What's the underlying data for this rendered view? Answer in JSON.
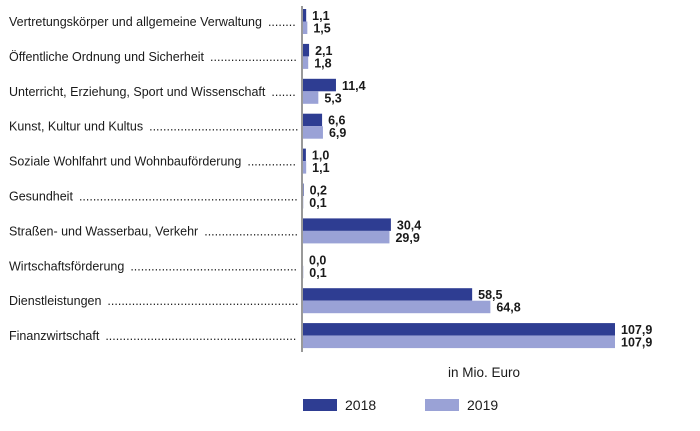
{
  "chart_data": {
    "type": "bar",
    "orientation": "horizontal",
    "categories": [
      "Vertretungskörper und allgemeine Verwaltung",
      "Öffentliche Ordnung und Sicherheit",
      "Unterricht, Erziehung, Sport und Wissenschaft",
      "Kunst, Kultur und Kultus",
      "Soziale Wohlfahrt und Wohnbauförderung",
      "Gesundheit",
      "Straßen- und Wasserbau, Verkehr",
      "Wirtschaftsförderung",
      "Dienstleistungen",
      "Finanzwirtschaft"
    ],
    "series": [
      {
        "name": "2018",
        "color": "#2e3d92",
        "values": [
          1.1,
          2.1,
          11.4,
          6.6,
          1.0,
          0.2,
          30.4,
          0.0,
          58.5,
          107.9
        ],
        "labels": [
          "1,1",
          "2,1",
          "11,4",
          "6,6",
          "1,0",
          "0,2",
          "30,4",
          "0,0",
          "58,5",
          "107,9"
        ]
      },
      {
        "name": "2019",
        "color": "#9aa2d6",
        "values": [
          1.5,
          1.8,
          5.3,
          6.9,
          1.1,
          0.1,
          29.9,
          0.1,
          64.8,
          107.9
        ],
        "labels": [
          "1,5",
          "1,8",
          "5,3",
          "6,9",
          "1,1",
          "0,1",
          "29,9",
          "0,1",
          "64,8",
          "107,9"
        ]
      }
    ],
    "xlim": [
      0,
      107.9
    ],
    "unit_label": "in Mio. Euro",
    "legend_position": "bottom",
    "grid": false
  }
}
